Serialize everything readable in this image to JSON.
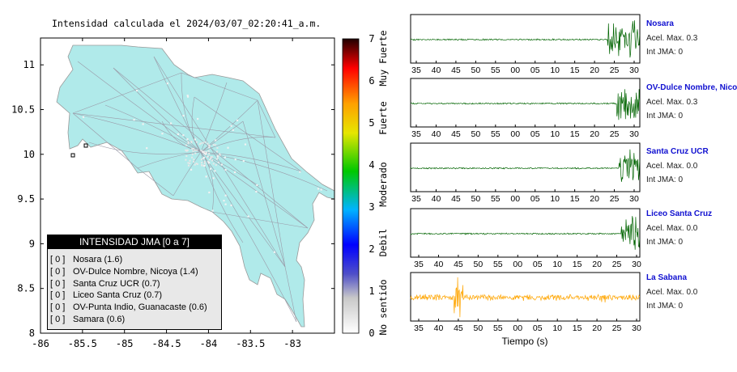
{
  "map": {
    "title": "Intensidad calculada el 2024/03/07_02:20:41_a.m.",
    "xlim": [
      -86,
      -82.5
    ],
    "ylim": [
      8,
      11.3
    ],
    "x_ticks": [
      "-86",
      "-85.5",
      "-85",
      "-84.5",
      "-84",
      "-83.5",
      "-83"
    ],
    "y_ticks": [
      "8",
      "8.5",
      "9",
      "9.5",
      "10",
      "10.5",
      "11"
    ],
    "land_color": "#b0eaea"
  },
  "colorbar": {
    "ticks": [
      "0",
      "1",
      "2",
      "3",
      "4",
      "5",
      "6",
      "7"
    ],
    "range": [
      0,
      7
    ],
    "class_labels": [
      "No sentido",
      "Debil",
      "Moderado",
      "Fuerte",
      "Muy Fuerte"
    ]
  },
  "legend": {
    "title": "INTENSIDAD JMA [0 a 7]",
    "items": [
      {
        "jma": "[ 0 ]",
        "label": "Nosara (1.6)"
      },
      {
        "jma": "[ 0 ]",
        "label": "OV-Dulce Nombre, Nicoya (1.4)"
      },
      {
        "jma": "[ 0 ]",
        "label": "Santa Cruz UCR (0.7)"
      },
      {
        "jma": "[ 0 ]",
        "label": "Liceo Santa Cruz (0.7)"
      },
      {
        "jma": "[ 0 ]",
        "label": "OV-Punta Indio, Guanacaste (0.6)"
      },
      {
        "jma": "[ 0 ]",
        "label": "Samara (0.6)"
      }
    ]
  },
  "seismograms": {
    "xlabel": "Tiempo (s)",
    "tick_labels": [
      "35",
      "40",
      "45",
      "50",
      "55",
      "00",
      "05",
      "10",
      "15",
      "20",
      "25",
      "30"
    ],
    "stations": [
      {
        "name": "Nosara",
        "acel": "Acel. Max. 0.3",
        "jma": "Int JMA: 0",
        "color": "#006400",
        "onset_frac": 0.86,
        "peak_frac": 0.0
      },
      {
        "name": "OV-Dulce Nombre, Nicoya",
        "acel": "Acel. Max. 0.3",
        "jma": "Int JMA: 0",
        "color": "#006400",
        "onset_frac": 0.9,
        "peak_frac": 0.0
      },
      {
        "name": "Santa Cruz UCR",
        "acel": "Acel. Max. 0.0",
        "jma": "Int JMA: 0",
        "color": "#006400",
        "onset_frac": 0.91,
        "peak_frac": 0.0
      },
      {
        "name": "Liceo Santa Cruz",
        "acel": "Acel. Max. 0.0",
        "jma": "Int JMA: 0",
        "color": "#006400",
        "onset_frac": 0.92,
        "peak_frac": 0.0
      },
      {
        "name": "La Sabana",
        "acel": "Acel. Max. 0.0",
        "jma": "Int JMA: 0",
        "color": "#ffa500",
        "onset_frac": 0.0,
        "peak_frac": 0.21
      }
    ]
  },
  "chart_data": [
    {
      "type": "scatter",
      "title": "Intensidad calculada el 2024/03/07_02:20:41_a.m.",
      "xlim": [
        -86,
        -82.5
      ],
      "ylim": [
        8,
        11.3
      ],
      "series": [
        {
          "name": "JMA",
          "points": [
            {
              "label": "Nosara",
              "value": 1.6
            },
            {
              "label": "OV-Dulce Nombre, Nicoya",
              "value": 1.4
            },
            {
              "label": "Santa Cruz UCR",
              "value": 0.7
            },
            {
              "label": "Liceo Santa Cruz",
              "value": 0.7
            },
            {
              "label": "OV-Punta Indio, Guanacaste",
              "value": 0.6
            },
            {
              "label": "Samara",
              "value": 0.6
            }
          ]
        }
      ]
    },
    {
      "type": "line",
      "xlabel": "Tiempo (s)",
      "categories": [
        "35",
        "40",
        "45",
        "50",
        "55",
        "00",
        "05",
        "10",
        "15",
        "20",
        "25",
        "30"
      ],
      "series": [
        {
          "name": "Nosara",
          "acel_max": 0.3,
          "int_jma": 0
        },
        {
          "name": "OV-Dulce Nombre, Nicoya",
          "acel_max": 0.3,
          "int_jma": 0
        },
        {
          "name": "Santa Cruz UCR",
          "acel_max": 0.0,
          "int_jma": 0
        },
        {
          "name": "Liceo Santa Cruz",
          "acel_max": 0.0,
          "int_jma": 0
        },
        {
          "name": "La Sabana",
          "acel_max": 0.0,
          "int_jma": 0
        }
      ]
    }
  ]
}
